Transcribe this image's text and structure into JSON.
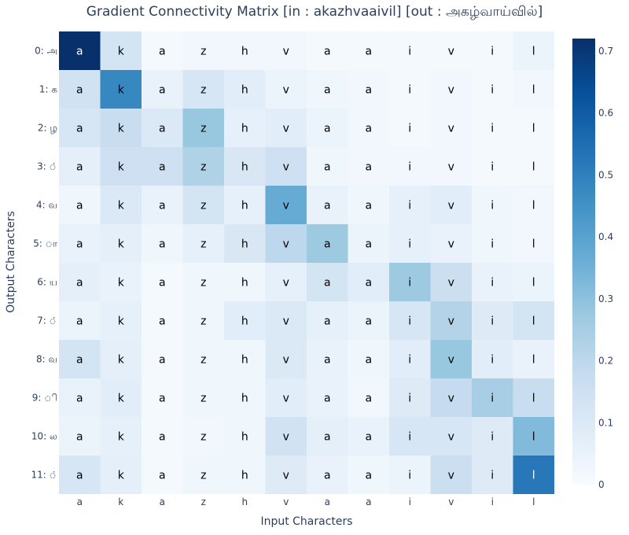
{
  "chart_data": {
    "type": "heatmap",
    "title": "Gradient Connectivity Matrix [in : akazhvaaivil] [out : அகழ்வாய்வில்]",
    "xlabel": "Input Characters",
    "ylabel": "Output Characters",
    "x_categories": [
      "a",
      "k",
      "a",
      "z",
      "h",
      "v",
      "a",
      "a",
      "i",
      "v",
      "i",
      "l"
    ],
    "y_categories": [
      "0: அ",
      "1: க",
      "2: ழ",
      "3: ்",
      "4: வ",
      "5: ா",
      "6: ய",
      "7: ்",
      "8: வ",
      "9: ி",
      "10: ல",
      "11: ்"
    ],
    "zlim": [
      0,
      0.72
    ],
    "colorbar_ticks": [
      0,
      0.1,
      0.2,
      0.3,
      0.4,
      0.5,
      0.6,
      0.7
    ],
    "colorscale": [
      "#f7fbff",
      "#deebf7",
      "#c6dbef",
      "#9ecae1",
      "#6baed6",
      "#4292c6",
      "#2171b5",
      "#08519c",
      "#08306b"
    ],
    "values": [
      [
        0.72,
        0.13,
        0.01,
        0.02,
        0.02,
        0.02,
        0.01,
        0.01,
        0.01,
        0.01,
        0.01,
        0.04
      ],
      [
        0.14,
        0.48,
        0.05,
        0.12,
        0.08,
        0.04,
        0.03,
        0.02,
        0.01,
        0.02,
        0.01,
        0.02
      ],
      [
        0.12,
        0.17,
        0.1,
        0.28,
        0.06,
        0.08,
        0.04,
        0.02,
        0.01,
        0.02,
        0.01,
        0.01
      ],
      [
        0.07,
        0.15,
        0.15,
        0.23,
        0.11,
        0.15,
        0.03,
        0.02,
        0.02,
        0.02,
        0.01,
        0.01
      ],
      [
        0.03,
        0.1,
        0.05,
        0.13,
        0.06,
        0.37,
        0.05,
        0.03,
        0.06,
        0.08,
        0.03,
        0.02
      ],
      [
        0.05,
        0.07,
        0.03,
        0.06,
        0.11,
        0.2,
        0.27,
        0.04,
        0.06,
        0.05,
        0.03,
        0.02
      ],
      [
        0.07,
        0.05,
        0.01,
        0.03,
        0.03,
        0.06,
        0.13,
        0.08,
        0.27,
        0.16,
        0.05,
        0.04
      ],
      [
        0.04,
        0.06,
        0.01,
        0.03,
        0.08,
        0.1,
        0.06,
        0.04,
        0.12,
        0.22,
        0.09,
        0.13
      ],
      [
        0.13,
        0.07,
        0.01,
        0.03,
        0.03,
        0.1,
        0.05,
        0.03,
        0.08,
        0.28,
        0.08,
        0.05
      ],
      [
        0.05,
        0.08,
        0.01,
        0.03,
        0.03,
        0.08,
        0.05,
        0.02,
        0.09,
        0.18,
        0.25,
        0.17
      ],
      [
        0.04,
        0.06,
        0.01,
        0.02,
        0.03,
        0.14,
        0.07,
        0.05,
        0.12,
        0.12,
        0.09,
        0.32
      ],
      [
        0.12,
        0.07,
        0.01,
        0.03,
        0.03,
        0.09,
        0.05,
        0.03,
        0.04,
        0.16,
        0.09,
        0.52
      ]
    ]
  }
}
